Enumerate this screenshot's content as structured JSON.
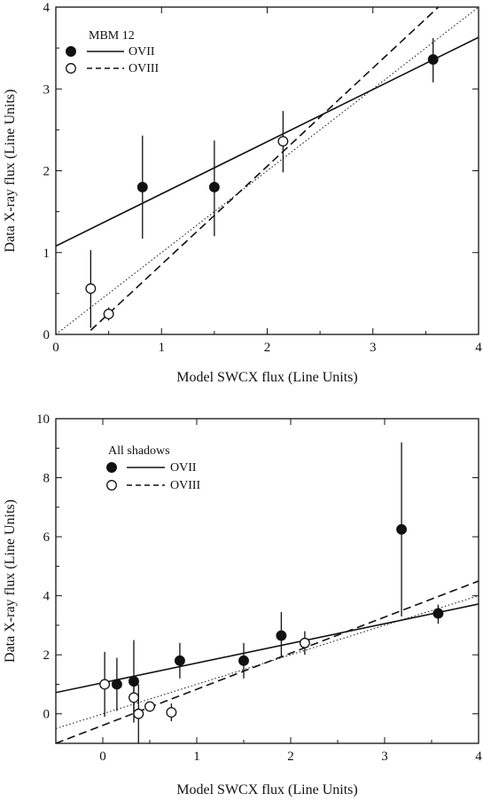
{
  "chart_data": [
    {
      "type": "scatter",
      "xlabel": "Model SWCX flux (Line Units)",
      "ylabel": "Data X-ray flux (Line Units)",
      "xlim": [
        0,
        4
      ],
      "ylim": [
        0,
        4
      ],
      "xticks": [
        "0",
        "1",
        "2",
        "3",
        "4"
      ],
      "yticks": [
        "0",
        "1",
        "2",
        "3",
        "4"
      ],
      "legend": {
        "title": "MBM 12",
        "placement": "top-left",
        "entries": [
          {
            "label": "OVII",
            "marker": "filled-circle",
            "line": "solid"
          },
          {
            "label": "OVIII",
            "marker": "open-circle",
            "line": "dashed"
          }
        ]
      },
      "series": [
        {
          "name": "OVII",
          "marker": "filled-circle",
          "points": [
            {
              "x": 0.82,
              "y": 1.8,
              "ylo": 1.17,
              "yhi": 2.43
            },
            {
              "x": 1.5,
              "y": 1.8,
              "ylo": 1.2,
              "yhi": 2.37
            },
            {
              "x": 3.57,
              "y": 3.36,
              "ylo": 3.08,
              "yhi": 3.62
            }
          ]
        },
        {
          "name": "OVIII",
          "marker": "open-circle",
          "points": [
            {
              "x": 0.33,
              "y": 0.56,
              "ylo": 0.08,
              "yhi": 1.03
            },
            {
              "x": 0.5,
              "y": 0.25,
              "ylo": 0.17,
              "yhi": 0.33
            },
            {
              "x": 2.15,
              "y": 2.36,
              "ylo": 1.98,
              "yhi": 2.73
            }
          ]
        }
      ],
      "lines": [
        {
          "series": "OVII",
          "style": "solid",
          "x": [
            0,
            4
          ],
          "y": [
            1.08,
            3.63
          ]
        },
        {
          "series": "OVIII",
          "style": "dashed",
          "x": [
            0.33,
            3.62
          ],
          "y": [
            0.05,
            4.0
          ]
        },
        {
          "style": "dotted",
          "x": [
            0,
            4
          ],
          "y": [
            0,
            4
          ]
        }
      ]
    },
    {
      "type": "scatter",
      "xlabel": "Model SWCX flux (Line Units)",
      "ylabel": "Data X-ray flux (Line Units)",
      "xlim": [
        -0.5,
        4
      ],
      "ylim": [
        -1,
        10
      ],
      "xticks": [
        "0",
        "1",
        "2",
        "3",
        "4"
      ],
      "yticks": [
        "0",
        "2",
        "4",
        "6",
        "8",
        "10"
      ],
      "legend": {
        "title": "All shadows",
        "placement": "top-left",
        "entries": [
          {
            "label": "OVII",
            "marker": "filled-circle",
            "line": "solid"
          },
          {
            "label": "OVIII",
            "marker": "open-circle",
            "line": "dashed"
          }
        ]
      },
      "series": [
        {
          "name": "OVII",
          "marker": "filled-circle",
          "points": [
            {
              "x": 0.15,
              "y": 1.0,
              "ylo": 0.1,
              "yhi": 1.9
            },
            {
              "x": 0.33,
              "y": 1.1,
              "ylo": -0.3,
              "yhi": 2.5
            },
            {
              "x": 0.82,
              "y": 1.8,
              "ylo": 1.2,
              "yhi": 2.4
            },
            {
              "x": 1.5,
              "y": 1.8,
              "ylo": 1.2,
              "yhi": 2.4
            },
            {
              "x": 1.9,
              "y": 2.65,
              "ylo": 1.9,
              "yhi": 3.45
            },
            {
              "x": 3.18,
              "y": 6.25,
              "ylo": 3.3,
              "yhi": 9.2
            },
            {
              "x": 3.57,
              "y": 3.4,
              "ylo": 3.05,
              "yhi": 3.7
            }
          ]
        },
        {
          "name": "OVIII",
          "marker": "open-circle",
          "points": [
            {
              "x": 0.02,
              "y": 1.0,
              "ylo": -0.1,
              "yhi": 2.1
            },
            {
              "x": 0.33,
              "y": 0.55,
              "ylo": 0.1,
              "yhi": 1.0
            },
            {
              "x": 0.38,
              "y": 0.0,
              "ylo": -1.0,
              "yhi": 1.0
            },
            {
              "x": 0.5,
              "y": 0.25,
              "ylo": 0.25,
              "yhi": 0.25
            },
            {
              "x": 0.73,
              "y": 0.05,
              "ylo": -0.25,
              "yhi": 0.35
            },
            {
              "x": 2.15,
              "y": 2.4,
              "ylo": 2.0,
              "yhi": 2.8
            }
          ]
        }
      ],
      "lines": [
        {
          "series": "OVII",
          "style": "solid",
          "x": [
            -0.5,
            4
          ],
          "y": [
            0.72,
            3.72
          ]
        },
        {
          "series": "OVIII",
          "style": "dashed",
          "x": [
            -0.5,
            4
          ],
          "y": [
            -1.0,
            4.5
          ]
        },
        {
          "style": "dotted",
          "x": [
            -0.5,
            4
          ],
          "y": [
            -0.5,
            4.0
          ]
        }
      ]
    }
  ]
}
